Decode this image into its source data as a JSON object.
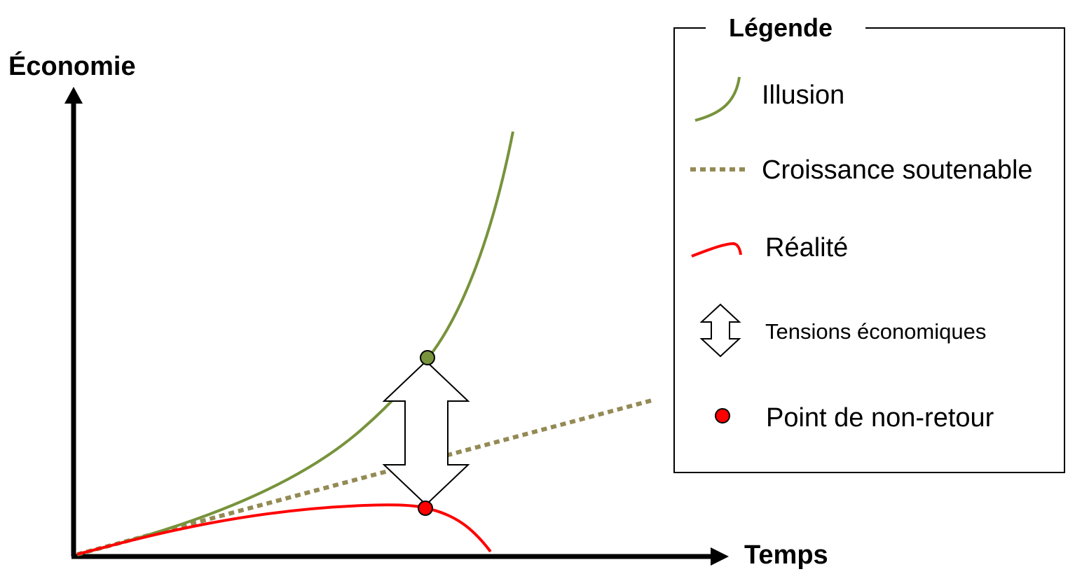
{
  "axes": {
    "y_title": "Économie",
    "x_title": "Temps"
  },
  "legend": {
    "title": "Légende",
    "items": [
      {
        "key": "illusion",
        "label": "Illusion",
        "color": "#77933C"
      },
      {
        "key": "croissance",
        "label": "Croissance soutenable",
        "color": "#948A54"
      },
      {
        "key": "realite",
        "label": "Réalité",
        "color": "#FF0000"
      },
      {
        "key": "tensions",
        "label": "Tensions économiques",
        "color": "#000000"
      },
      {
        "key": "point",
        "label": "Point de non-retour",
        "color": "#FF0000"
      }
    ]
  },
  "colors": {
    "illusion": "#77933C",
    "croissance": "#948A54",
    "realite": "#FF0000",
    "axis": "#000000"
  },
  "icons": {
    "tension_arrow": "double-headed-arrow-icon",
    "point_marker": "circle-marker-icon"
  }
}
